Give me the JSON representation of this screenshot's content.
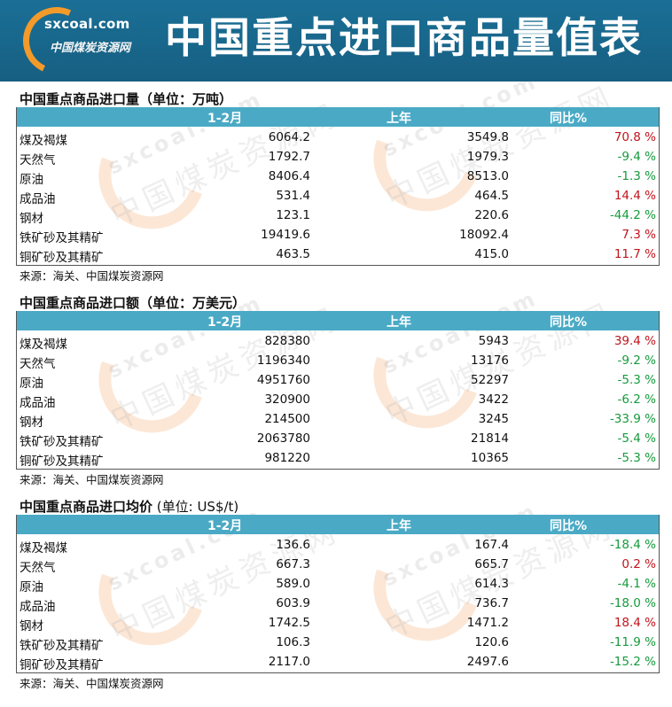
{
  "header": {
    "logo_domain": "sxcoal.com",
    "logo_cn": "中国煤炭资源网",
    "title": "中国重点进口商品量值表"
  },
  "watermark": {
    "text_en": "sxcoal.com",
    "text_cn": "中国煤炭资源网"
  },
  "columns": {
    "period": "1-2月",
    "last_year": "上年",
    "yoy": "同比%"
  },
  "colors": {
    "header_bg": "#175f82",
    "table_header": "#4aaac6",
    "increase": "#c0141c",
    "decrease": "#169a3c"
  },
  "sections": [
    {
      "title": "中国重点商品进口量（单位：万吨）",
      "source": "来源：海关、中国煤炭资源网",
      "rows": [
        {
          "name": "煤及褐煤",
          "current": "6064.2",
          "last": "3549.8",
          "yoy": "70.8 %",
          "trend": "up"
        },
        {
          "name": "天然气",
          "current": "1792.7",
          "last": "1979.3",
          "yoy": "-9.4 %",
          "trend": "down"
        },
        {
          "name": "原油",
          "current": "8406.4",
          "last": "8513.0",
          "yoy": "-1.3 %",
          "trend": "down"
        },
        {
          "name": "成品油",
          "current": "531.4",
          "last": "464.5",
          "yoy": "14.4 %",
          "trend": "up"
        },
        {
          "name": "钢材",
          "current": "123.1",
          "last": "220.6",
          "yoy": "-44.2 %",
          "trend": "down"
        },
        {
          "name": "铁矿砂及其精矿",
          "current": "19419.6",
          "last": "18092.4",
          "yoy": "7.3 %",
          "trend": "up"
        },
        {
          "name": "铜矿砂及其精矿",
          "current": "463.5",
          "last": "415.0",
          "yoy": "11.7 %",
          "trend": "up"
        }
      ]
    },
    {
      "title": "中国重点商品进口额（单位：万美元）",
      "source": "来源：海关、中国煤炭资源网",
      "rows": [
        {
          "name": "煤及褐煤",
          "current": "828380",
          "last": "5943",
          "yoy": "39.4 %",
          "trend": "up"
        },
        {
          "name": "天然气",
          "current": "1196340",
          "last": "13176",
          "yoy": "-9.2 %",
          "trend": "down"
        },
        {
          "name": "原油",
          "current": "4951760",
          "last": "52297",
          "yoy": "-5.3 %",
          "trend": "down"
        },
        {
          "name": "成品油",
          "current": "320900",
          "last": "3422",
          "yoy": "-6.2 %",
          "trend": "down"
        },
        {
          "name": "钢材",
          "current": "214500",
          "last": "3245",
          "yoy": "-33.9 %",
          "trend": "down"
        },
        {
          "name": "铁矿砂及其精矿",
          "current": "2063780",
          "last": "21814",
          "yoy": "-5.4 %",
          "trend": "down"
        },
        {
          "name": "铜矿砂及其精矿",
          "current": "981220",
          "last": "10365",
          "yoy": "-5.3 %",
          "trend": "down"
        }
      ]
    },
    {
      "title": "中国重点商品进口均价",
      "title_unit": " (单位: US$/t)",
      "source": "来源：海关、中国煤炭资源网",
      "rows": [
        {
          "name": "煤及褐煤",
          "current": "136.6",
          "last": "167.4",
          "yoy": "-18.4 %",
          "trend": "down"
        },
        {
          "name": "天然气",
          "current": "667.3",
          "last": "665.7",
          "yoy": "0.2 %",
          "trend": "up"
        },
        {
          "name": "原油",
          "current": "589.0",
          "last": "614.3",
          "yoy": "-4.1 %",
          "trend": "down"
        },
        {
          "name": "成品油",
          "current": "603.9",
          "last": "736.7",
          "yoy": "-18.0 %",
          "trend": "down"
        },
        {
          "name": "钢材",
          "current": "1742.5",
          "last": "1471.2",
          "yoy": "18.4 %",
          "trend": "up"
        },
        {
          "name": "铁矿砂及其精矿",
          "current": "106.3",
          "last": "120.6",
          "yoy": "-11.9 %",
          "trend": "down"
        },
        {
          "name": "铜矿砂及其精矿",
          "current": "2117.0",
          "last": "2497.6",
          "yoy": "-15.2 %",
          "trend": "down"
        }
      ]
    }
  ]
}
